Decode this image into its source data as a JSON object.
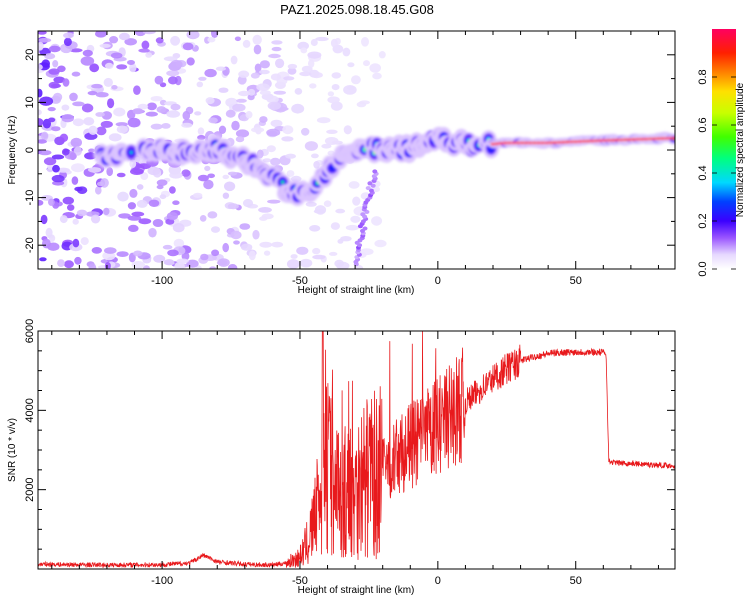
{
  "title": "PAZ1.2025.098.18.45.G08",
  "chart_data": [
    {
      "type": "heatmap",
      "xlabel": "Height of straight line (km)",
      "ylabel": "Frequency (Hz)",
      "xlim": [
        -145,
        86
      ],
      "ylim": [
        -25,
        25
      ],
      "xticks": [
        -100,
        -50,
        0,
        50
      ],
      "yticks": [
        -20,
        -10,
        0,
        10,
        20
      ],
      "ridge": {
        "x": [
          -120,
          -112,
          -105,
          -98,
          -92,
          -86,
          -80,
          -75,
          -70,
          -65,
          -60,
          -56,
          -52,
          -48,
          -44,
          -40,
          -36,
          -32,
          -28,
          -24,
          -20,
          -15,
          -10,
          -5,
          0,
          5,
          10,
          15,
          25,
          40,
          60,
          86
        ],
        "freq": [
          -1.5,
          -1.5,
          0,
          0.5,
          -0.5,
          0,
          0.5,
          -1,
          -2,
          -4,
          -6,
          -8,
          -9,
          -8.5,
          -7.5,
          -4,
          -2,
          -0.5,
          0.5,
          0.5,
          0,
          0,
          0.5,
          1,
          2.5,
          1.5,
          1,
          1,
          1.5,
          1.5,
          2,
          2.5
        ]
      },
      "colorbar": {
        "label": "Normalized spectral amplitude",
        "ticks": [
          0.0,
          0.2,
          0.4,
          0.6,
          0.8
        ],
        "range": [
          0,
          1
        ]
      }
    },
    {
      "type": "line",
      "xlabel": "Height of straight line (km)",
      "ylabel": "SNR (10 * v/v)",
      "xlim": [
        -145,
        86
      ],
      "ylim": [
        0,
        6000
      ],
      "xticks": [
        -100,
        -50,
        0,
        50
      ],
      "yticks": [
        2000,
        4000,
        6000
      ],
      "color": "#e8191c",
      "series": [
        {
          "x": [
            -145,
            -120,
            -100,
            -90,
            -85,
            -80,
            -70,
            -60,
            -55,
            -50,
            -47,
            -44,
            -42,
            -40,
            -38,
            -35,
            -30,
            -25,
            -20,
            -15,
            -10,
            -5,
            0,
            5,
            10,
            15,
            20,
            25,
            30,
            35,
            40,
            45,
            50,
            55,
            60,
            61,
            62,
            65,
            70,
            75,
            80,
            86
          ],
          "values": [
            120,
            100,
            110,
            150,
            350,
            180,
            120,
            100,
            150,
            300,
            700,
            1400,
            2200,
            2600,
            2400,
            1900,
            2100,
            2300,
            2500,
            2800,
            3100,
            3300,
            3600,
            3900,
            4200,
            4500,
            4800,
            5050,
            5250,
            5350,
            5430,
            5460,
            5470,
            5470,
            5460,
            5450,
            2700,
            2680,
            2660,
            2640,
            2620,
            2600
          ]
        }
      ]
    }
  ]
}
